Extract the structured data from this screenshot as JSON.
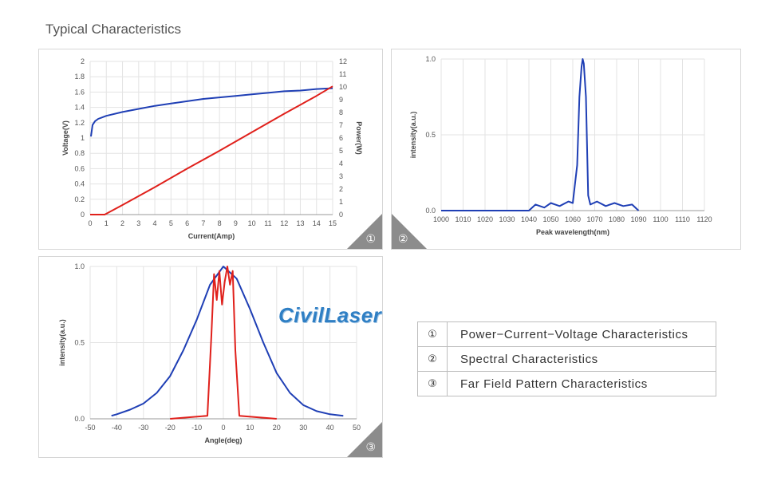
{
  "page_title": "Typical Characteristics",
  "watermark": "CivilLaser",
  "legend_table": [
    {
      "num": "①",
      "label": "Power−Current−Voltage  Characteristics"
    },
    {
      "num": "②",
      "label": "Spectral Characteristics"
    },
    {
      "num": "③",
      "label": "Far Field Pattern Characteristics"
    }
  ],
  "panel_numbers": [
    "①",
    "②",
    "③"
  ],
  "colors": {
    "blue": "#1f3fb5",
    "red": "#e0201b",
    "grid": "#e3e3e3",
    "axis_text": "#555555"
  },
  "chart_data": [
    {
      "type": "line",
      "xlabel": "Current(Amp)",
      "ylabel": "Voltage(V)",
      "y2label": "Power(W)",
      "xlim": [
        0,
        15
      ],
      "ylim": [
        0,
        2
      ],
      "y2lim": [
        0,
        12
      ],
      "xticks": [
        "0",
        "1",
        "2",
        "3",
        "4",
        "5",
        "6",
        "7",
        "8",
        "9",
        "10",
        "11",
        "12",
        "13",
        "14",
        "15"
      ],
      "yticks": [
        "0",
        "0.2",
        "0.4",
        "0.6",
        "0.8",
        "1",
        "1.2",
        "1.4",
        "1.6",
        "1.8",
        "2"
      ],
      "y2ticks": [
        "0",
        "1",
        "2",
        "3",
        "4",
        "5",
        "6",
        "7",
        "8",
        "9",
        "10",
        "11",
        "12"
      ],
      "grid": true,
      "series": [
        {
          "axis": "y",
          "color": "blue",
          "x": [
            0.05,
            0.15,
            0.3,
            0.5,
            1,
            2,
            3,
            4,
            5,
            6,
            7,
            8,
            9,
            10,
            11,
            12,
            13,
            14,
            15
          ],
          "y": [
            1.02,
            1.17,
            1.22,
            1.25,
            1.29,
            1.34,
            1.38,
            1.42,
            1.45,
            1.48,
            1.51,
            1.53,
            1.55,
            1.57,
            1.59,
            1.61,
            1.62,
            1.64,
            1.65
          ]
        },
        {
          "axis": "y2",
          "color": "red",
          "x": [
            0,
            0.9,
            2,
            4,
            6,
            8,
            10,
            12,
            14,
            15
          ],
          "y": [
            0,
            0,
            0.75,
            2.15,
            3.6,
            5.0,
            6.45,
            7.9,
            9.3,
            10.05
          ]
        }
      ]
    },
    {
      "type": "line",
      "xlabel": "Peak wavelength(nm)",
      "ylabel": "intensity(a.u.)",
      "xlim": [
        1000,
        1120
      ],
      "ylim": [
        0,
        1
      ],
      "xticks": [
        "1000",
        "1010",
        "1020",
        "1030",
        "1040",
        "1050",
        "1060",
        "1070",
        "1080",
        "1090",
        "1100",
        "1110",
        "1120"
      ],
      "yticks": [
        "0.0",
        "0.5",
        "1.0"
      ],
      "grid": true,
      "series": [
        {
          "color": "blue",
          "x": [
            1000,
            1040,
            1043,
            1047,
            1050,
            1054,
            1058,
            1060,
            1062,
            1063,
            1064,
            1064.5,
            1065,
            1066,
            1067,
            1068,
            1071,
            1075,
            1079,
            1083,
            1087,
            1090
          ],
          "y": [
            0,
            0,
            0.04,
            0.02,
            0.05,
            0.03,
            0.06,
            0.05,
            0.3,
            0.75,
            0.95,
            1.0,
            0.97,
            0.75,
            0.1,
            0.04,
            0.06,
            0.03,
            0.05,
            0.03,
            0.04,
            0
          ]
        }
      ]
    },
    {
      "type": "line",
      "xlabel": "Angle(deg)",
      "ylabel": "intensity(a.u.)",
      "xlim": [
        -50,
        50
      ],
      "ylim": [
        0,
        1
      ],
      "xticks": [
        "-50",
        "-40",
        "-30",
        "-20",
        "-10",
        "0",
        "10",
        "20",
        "30",
        "40",
        "50"
      ],
      "yticks": [
        "0.0",
        "0.5",
        "1.0"
      ],
      "grid": true,
      "series": [
        {
          "color": "blue",
          "x": [
            -42,
            -40,
            -35,
            -30,
            -25,
            -20,
            -15,
            -10,
            -5,
            0,
            5,
            10,
            15,
            20,
            25,
            30,
            35,
            40,
            45
          ],
          "y": [
            0.02,
            0.03,
            0.06,
            0.1,
            0.17,
            0.28,
            0.45,
            0.65,
            0.88,
            1.0,
            0.92,
            0.72,
            0.5,
            0.3,
            0.17,
            0.09,
            0.05,
            0.03,
            0.02
          ]
        },
        {
          "color": "red",
          "x": [
            -20,
            -6,
            -4.5,
            -3.5,
            -2.5,
            -1.5,
            -0.5,
            0.5,
            1.5,
            2.5,
            3.5,
            4.5,
            6,
            20
          ],
          "y": [
            0,
            0.02,
            0.55,
            0.95,
            0.78,
            0.97,
            0.75,
            0.9,
            1.0,
            0.88,
            0.97,
            0.45,
            0.02,
            0
          ]
        }
      ]
    }
  ]
}
